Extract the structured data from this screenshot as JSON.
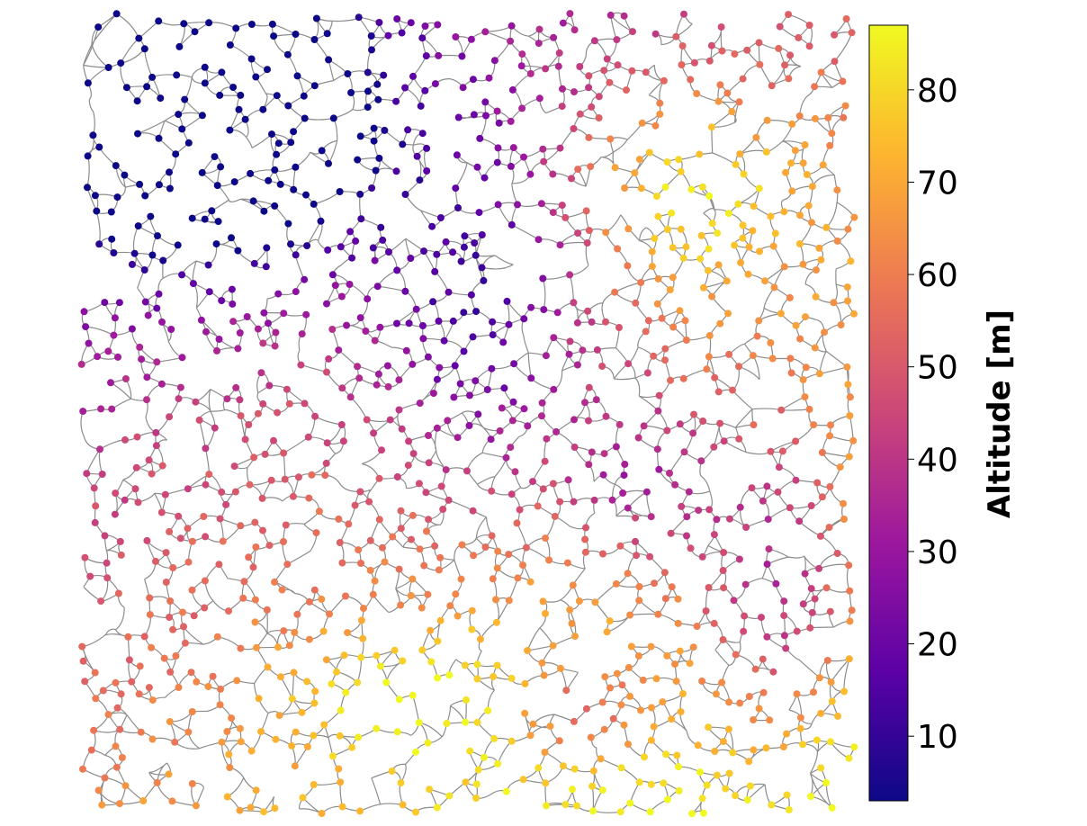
{
  "colorbar": {
    "label": "Altitude [m]",
    "min": 3,
    "max": 87,
    "ticks": [
      {
        "value": 10,
        "label": "10"
      },
      {
        "value": 20,
        "label": "20"
      },
      {
        "value": 30,
        "label": "30"
      },
      {
        "value": 40,
        "label": "40"
      },
      {
        "value": 50,
        "label": "50"
      },
      {
        "value": 60,
        "label": "60"
      },
      {
        "value": 70,
        "label": "70"
      },
      {
        "value": 80,
        "label": "80"
      }
    ],
    "colormap": [
      "#0d0887",
      "#5c01a6",
      "#9c179e",
      "#cc4778",
      "#ed7953",
      "#fdb42f",
      "#f0f921"
    ]
  },
  "map": {
    "edge_color": "#8c8c8c",
    "node_altitude_model": "northwest-low, southwest-high, central/east valley",
    "seed": 20240611
  }
}
